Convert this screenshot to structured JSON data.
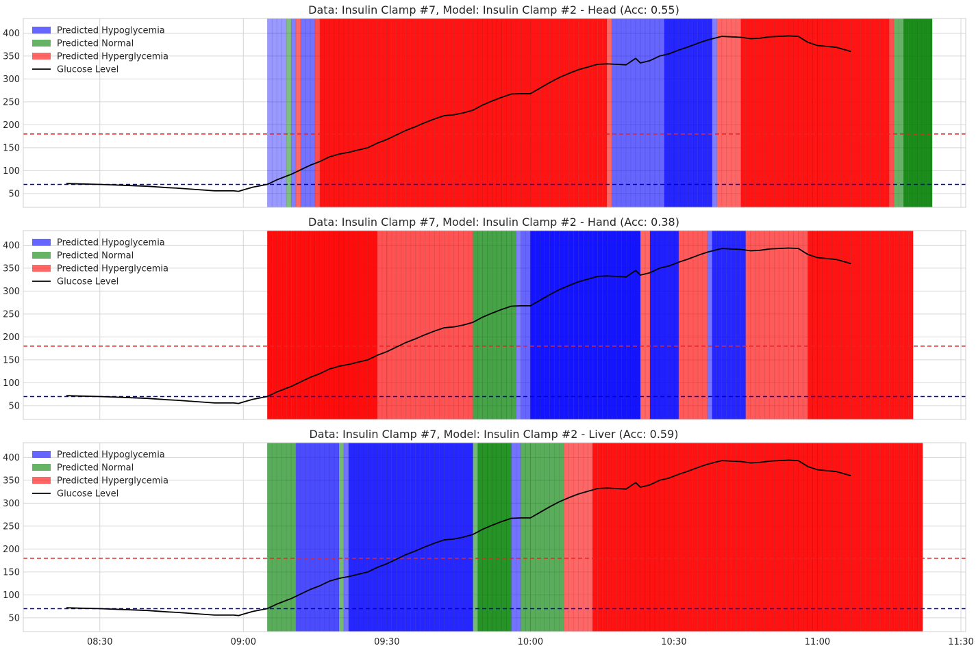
{
  "colors": {
    "hypo": "#0000ff",
    "normal": "#008000",
    "hyper": "#ff0000",
    "glucose": "#000000",
    "hypo_threshold_line": "#0000cc",
    "hyper_threshold_line": "#ee2222"
  },
  "legend": {
    "hypo": "Predicted Hypoglycemia",
    "normal": "Predicted Normal",
    "hyper": "Predicted Hyperglycemia",
    "glucose": "Glucose Level"
  },
  "chart_data": {
    "type": "line",
    "xlim": [
      "08:14",
      "11:31"
    ],
    "ylim": [
      20,
      432
    ],
    "yticks": [
      50,
      100,
      150,
      200,
      250,
      300,
      350,
      400
    ],
    "xticks": [
      "08:30",
      "09:00",
      "09:30",
      "10:00",
      "10:30",
      "11:00",
      "11:30"
    ],
    "thresholds": {
      "hypo": 70,
      "hyper": 180
    },
    "legend_position": "upper-left",
    "grid": true,
    "prediction_start": "09:05",
    "prediction_step_minutes": 1,
    "glucose": {
      "name": "Glucose Level",
      "x": [
        "08:23",
        "08:26",
        "08:30",
        "08:35",
        "08:40",
        "08:44",
        "08:46",
        "08:50",
        "08:54",
        "08:58",
        "08:59",
        "09:00",
        "09:02",
        "09:05",
        "09:06",
        "09:07",
        "09:08",
        "09:09",
        "09:10",
        "09:11",
        "09:12",
        "09:13",
        "09:14",
        "09:16",
        "09:18",
        "09:20",
        "09:22",
        "09:24",
        "09:26",
        "09:28",
        "09:30",
        "09:32",
        "09:34",
        "09:36",
        "09:38",
        "09:40",
        "09:42",
        "09:44",
        "09:46",
        "09:48",
        "09:50",
        "09:52",
        "09:54",
        "09:56",
        "09:58",
        "10:00",
        "10:02",
        "10:04",
        "10:06",
        "10:08",
        "10:10",
        "10:12",
        "10:14",
        "10:16",
        "10:18",
        "10:20",
        "10:22",
        "10:23",
        "10:25",
        "10:27",
        "10:29",
        "10:31",
        "10:33",
        "10:35",
        "10:37",
        "10:40",
        "10:42",
        "10:44",
        "10:46",
        "10:48",
        "10:50",
        "10:52",
        "10:54",
        "10:56",
        "10:58",
        "11:00",
        "11:02",
        "11:04",
        "11:05",
        "11:07"
      ],
      "y": [
        72,
        71,
        70,
        68,
        66,
        63,
        62,
        59,
        56,
        56,
        55,
        58,
        64,
        70,
        75,
        80,
        84,
        88,
        92,
        97,
        102,
        107,
        112,
        120,
        130,
        136,
        140,
        145,
        150,
        160,
        168,
        178,
        188,
        196,
        205,
        213,
        220,
        222,
        226,
        232,
        243,
        252,
        260,
        267,
        268,
        268,
        280,
        292,
        303,
        312,
        320,
        326,
        332,
        333,
        332,
        331,
        345,
        335,
        340,
        350,
        355,
        363,
        370,
        378,
        385,
        393,
        392,
        391,
        388,
        389,
        392,
        393,
        394,
        393,
        380,
        373,
        371,
        369,
        366,
        360
      ]
    },
    "panels": [
      {
        "title": "Data: Insulin Clamp #7, Model: Insulin Clamp #2 - Head (Acc: 0.55)",
        "segments": [
          {
            "class": "hypo",
            "n": 4,
            "alpha": 0.4
          },
          {
            "class": "normal",
            "n": 1,
            "alpha": 0.5
          },
          {
            "class": "hypo",
            "n": 1,
            "alpha": 0.5
          },
          {
            "class": "hyper",
            "n": 1,
            "alpha": 0.6
          },
          {
            "class": "hypo",
            "n": 3,
            "alpha": 0.55
          },
          {
            "class": "hyper",
            "n": 1,
            "alpha": 0.7
          },
          {
            "class": "hyper",
            "n": 60,
            "alpha": 0.92
          },
          {
            "class": "hyper",
            "n": 1,
            "alpha": 0.6
          },
          {
            "class": "hypo",
            "n": 11,
            "alpha": 0.6
          },
          {
            "class": "hypo",
            "n": 10,
            "alpha": 0.85
          },
          {
            "class": "hypo",
            "n": 1,
            "alpha": 0.5
          },
          {
            "class": "hyper",
            "n": 5,
            "alpha": 0.6
          },
          {
            "class": "hyper",
            "n": 31,
            "alpha": 0.92
          },
          {
            "class": "hyper",
            "n": 1,
            "alpha": 0.7
          },
          {
            "class": "normal",
            "n": 2,
            "alpha": 0.6
          },
          {
            "class": "normal",
            "n": 6,
            "alpha": 0.9
          }
        ]
      },
      {
        "title": "Data: Insulin Clamp #7, Model: Insulin Clamp #2 - Hand (Acc: 0.38)",
        "segments": [
          {
            "class": "hyper",
            "n": 23,
            "alpha": 0.95
          },
          {
            "class": "hyper",
            "n": 20,
            "alpha": 0.68
          },
          {
            "class": "normal",
            "n": 9,
            "alpha": 0.72
          },
          {
            "class": "hypo",
            "n": 1,
            "alpha": 0.5
          },
          {
            "class": "hypo",
            "n": 2,
            "alpha": 0.6
          },
          {
            "class": "hypo",
            "n": 23,
            "alpha": 0.92
          },
          {
            "class": "hyper",
            "n": 2,
            "alpha": 0.6
          },
          {
            "class": "hypo",
            "n": 6,
            "alpha": 0.88
          },
          {
            "class": "hyper",
            "n": 6,
            "alpha": 0.65
          },
          {
            "class": "hypo",
            "n": 1,
            "alpha": 0.55
          },
          {
            "class": "hypo",
            "n": 7,
            "alpha": 0.85
          },
          {
            "class": "hyper",
            "n": 13,
            "alpha": 0.65
          },
          {
            "class": "hyper",
            "n": 22,
            "alpha": 0.92
          }
        ]
      },
      {
        "title": "Data: Insulin Clamp #7, Model: Insulin Clamp #2 - Liver (Acc: 0.59)",
        "segments": [
          {
            "class": "normal",
            "n": 6,
            "alpha": 0.65
          },
          {
            "class": "hypo",
            "n": 9,
            "alpha": 0.7
          },
          {
            "class": "normal",
            "n": 1,
            "alpha": 0.55
          },
          {
            "class": "hypo",
            "n": 1,
            "alpha": 0.55
          },
          {
            "class": "hypo",
            "n": 26,
            "alpha": 0.85
          },
          {
            "class": "normal",
            "n": 1,
            "alpha": 0.55
          },
          {
            "class": "normal",
            "n": 7,
            "alpha": 0.85
          },
          {
            "class": "hypo",
            "n": 2,
            "alpha": 0.55
          },
          {
            "class": "normal",
            "n": 9,
            "alpha": 0.65
          },
          {
            "class": "hyper",
            "n": 6,
            "alpha": 0.6
          },
          {
            "class": "hyper",
            "n": 69,
            "alpha": 0.93
          }
        ]
      }
    ]
  }
}
